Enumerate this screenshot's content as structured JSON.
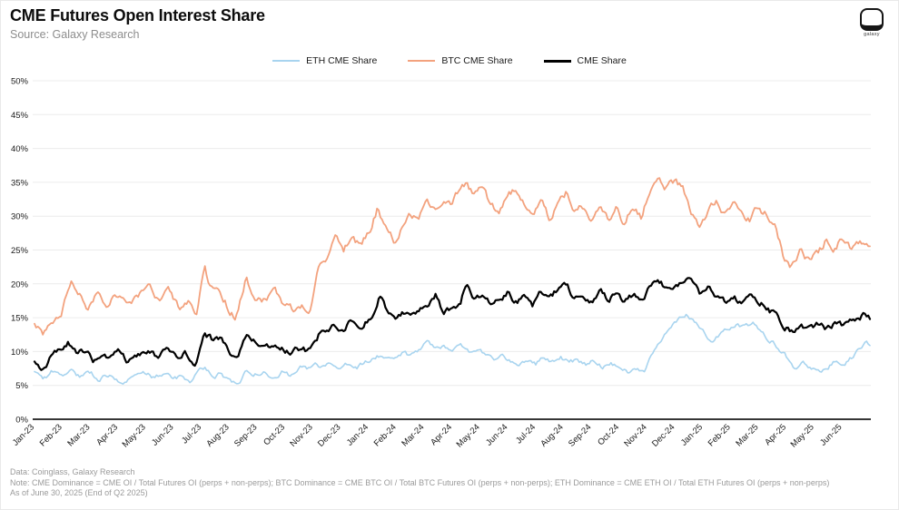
{
  "header": {
    "title": "CME Futures Open Interest Share",
    "subtitle": "Source: Galaxy Research",
    "logo_word": "galaxy"
  },
  "footer": {
    "line1": "Data: Coinglass, Galaxy Research",
    "line2": "Note: CME Dominance = CME OI / Total Futures OI (perps + non-perps); BTC Dominance = CME BTC OI / Total BTC Futures OI (perps + non-perps); ETH Dominance = CME ETH OI / Total ETH Futures OI (perps + non-perps)",
    "line3": "As of June 30, 2025 (End of Q2 2025)"
  },
  "chart_data": {
    "type": "line",
    "title": "CME Futures Open Interest Share",
    "x_unit": "months since Jan-2023",
    "xlim": [
      0,
      30
    ],
    "ylim": [
      0,
      50
    ],
    "grid": "horizontal",
    "y_tick_format": "percent",
    "y_ticks": [
      0,
      5,
      10,
      15,
      20,
      25,
      30,
      35,
      40,
      45,
      50
    ],
    "x_tick_labels": [
      "Jan-23",
      "Feb-23",
      "Mar-23",
      "Apr-23",
      "May-23",
      "Jun-23",
      "Jul-23",
      "Aug-23",
      "Sep-23",
      "Oct-23",
      "Nov-23",
      "Dec-23",
      "Jan-24",
      "Feb-24",
      "Mar-24",
      "Apr-24",
      "May-24",
      "Jun-24",
      "Jul-24",
      "Aug-24",
      "Sep-24",
      "Oct-24",
      "Nov-24",
      "Dec-24",
      "Jan-25",
      "Feb-25",
      "Mar-25",
      "Apr-25",
      "May-25",
      "Jun-25"
    ],
    "legend_position": "top",
    "colors": {
      "eth": "#A8D4EF",
      "btc": "#F3A27E",
      "cme": "#000000",
      "grid": "#ececec",
      "axis": "#1a1a1a"
    },
    "series": [
      {
        "name": "ETH CME Share",
        "color": "#A8D4EF",
        "width": 1.6,
        "jitter": 0.3,
        "points": [
          [
            0,
            7.0
          ],
          [
            0.3,
            5.8
          ],
          [
            0.6,
            6.9
          ],
          [
            1.0,
            6.6
          ],
          [
            1.3,
            7.3
          ],
          [
            1.6,
            6.4
          ],
          [
            2.0,
            7.0
          ],
          [
            2.3,
            6.0
          ],
          [
            2.6,
            6.6
          ],
          [
            3.0,
            5.9
          ],
          [
            3.3,
            5.4
          ],
          [
            3.6,
            6.3
          ],
          [
            4.0,
            6.8
          ],
          [
            4.3,
            6.1
          ],
          [
            4.6,
            6.7
          ],
          [
            5.0,
            5.9
          ],
          [
            5.3,
            6.4
          ],
          [
            5.6,
            5.8
          ],
          [
            6.1,
            7.6
          ],
          [
            6.4,
            6.1
          ],
          [
            6.7,
            6.8
          ],
          [
            7.0,
            5.6
          ],
          [
            7.3,
            4.8
          ],
          [
            7.6,
            7.3
          ],
          [
            7.9,
            6.6
          ],
          [
            8.2,
            7.1
          ],
          [
            8.5,
            6.4
          ],
          [
            8.9,
            7.0
          ],
          [
            9.2,
            6.5
          ],
          [
            9.5,
            7.9
          ],
          [
            9.8,
            7.3
          ],
          [
            10.1,
            8.2
          ],
          [
            10.4,
            7.5
          ],
          [
            10.7,
            8.3
          ],
          [
            11.0,
            7.7
          ],
          [
            11.3,
            8.5
          ],
          [
            11.6,
            7.8
          ],
          [
            12.0,
            8.6
          ],
          [
            12.3,
            9.3
          ],
          [
            12.6,
            8.6
          ],
          [
            12.9,
            9.0
          ],
          [
            13.2,
            9.8
          ],
          [
            13.5,
            9.3
          ],
          [
            13.8,
            10.4
          ],
          [
            14.1,
            11.4
          ],
          [
            14.4,
            10.6
          ],
          [
            14.7,
            11.0
          ],
          [
            15.0,
            10.2
          ],
          [
            15.3,
            10.8
          ],
          [
            15.6,
            10.0
          ],
          [
            15.9,
            10.5
          ],
          [
            16.2,
            9.6
          ],
          [
            16.5,
            9.0
          ],
          [
            16.8,
            9.5
          ],
          [
            17.1,
            8.6
          ],
          [
            17.4,
            8.0
          ],
          [
            17.7,
            8.8
          ],
          [
            18.0,
            8.2
          ],
          [
            18.3,
            9.3
          ],
          [
            18.6,
            8.5
          ],
          [
            18.9,
            9.1
          ],
          [
            19.2,
            8.3
          ],
          [
            19.5,
            8.9
          ],
          [
            19.8,
            8.1
          ],
          [
            20.1,
            8.7
          ],
          [
            20.4,
            7.8
          ],
          [
            20.7,
            8.4
          ],
          [
            21.0,
            7.6
          ],
          [
            21.3,
            7.1
          ],
          [
            21.6,
            7.7
          ],
          [
            21.9,
            7.2
          ],
          [
            22.2,
            9.6
          ],
          [
            22.5,
            11.8
          ],
          [
            22.8,
            13.4
          ],
          [
            23.1,
            14.6
          ],
          [
            23.4,
            15.5
          ],
          [
            23.7,
            14.2
          ],
          [
            24.0,
            13.0
          ],
          [
            24.3,
            11.2
          ],
          [
            24.6,
            12.6
          ],
          [
            24.9,
            13.3
          ],
          [
            25.2,
            14.2
          ],
          [
            25.5,
            13.6
          ],
          [
            25.8,
            14.4
          ],
          [
            26.1,
            12.8
          ],
          [
            26.4,
            11.6
          ],
          [
            26.7,
            10.7
          ],
          [
            27.0,
            9.2
          ],
          [
            27.3,
            7.6
          ],
          [
            27.6,
            8.3
          ],
          [
            27.9,
            7.4
          ],
          [
            28.2,
            6.9
          ],
          [
            28.5,
            7.8
          ],
          [
            28.8,
            8.6
          ],
          [
            29.1,
            8.2
          ],
          [
            29.4,
            9.3
          ],
          [
            29.7,
            10.6
          ],
          [
            29.85,
            11.3
          ],
          [
            30,
            10.8
          ]
        ]
      },
      {
        "name": "BTC CME Share",
        "color": "#F3A27E",
        "width": 1.8,
        "jitter": 0.5,
        "points": [
          [
            0,
            14.5
          ],
          [
            0.3,
            12.9
          ],
          [
            0.7,
            15.0
          ],
          [
            1.0,
            16.2
          ],
          [
            1.3,
            20.8
          ],
          [
            1.6,
            18.4
          ],
          [
            1.9,
            16.6
          ],
          [
            2.3,
            19.3
          ],
          [
            2.6,
            17.2
          ],
          [
            3.0,
            18.8
          ],
          [
            3.3,
            17.4
          ],
          [
            3.7,
            18.2
          ],
          [
            4.1,
            19.5
          ],
          [
            4.5,
            17.6
          ],
          [
            4.9,
            18.9
          ],
          [
            5.2,
            15.9
          ],
          [
            5.5,
            17.3
          ],
          [
            5.8,
            15.6
          ],
          [
            6.1,
            22.3
          ],
          [
            6.3,
            20.0
          ],
          [
            6.6,
            19.6
          ],
          [
            7.0,
            16.2
          ],
          [
            7.2,
            14.9
          ],
          [
            7.6,
            20.8
          ],
          [
            7.9,
            18.2
          ],
          [
            8.2,
            17.6
          ],
          [
            8.6,
            18.9
          ],
          [
            9.0,
            16.8
          ],
          [
            9.3,
            16.2
          ],
          [
            9.6,
            17.0
          ],
          [
            9.9,
            16.4
          ],
          [
            10.2,
            22.4
          ],
          [
            10.5,
            24.0
          ],
          [
            10.8,
            26.3
          ],
          [
            11.1,
            25.2
          ],
          [
            11.4,
            26.6
          ],
          [
            11.7,
            25.6
          ],
          [
            12.0,
            27.5
          ],
          [
            12.3,
            30.8
          ],
          [
            12.6,
            28.5
          ],
          [
            12.9,
            26.5
          ],
          [
            13.2,
            28.1
          ],
          [
            13.5,
            30.2
          ],
          [
            13.8,
            29.4
          ],
          [
            14.1,
            31.8
          ],
          [
            14.4,
            30.6
          ],
          [
            14.7,
            33.0
          ],
          [
            15.0,
            32.2
          ],
          [
            15.3,
            34.1
          ],
          [
            15.5,
            35.2
          ],
          [
            15.8,
            33.0
          ],
          [
            16.1,
            34.2
          ],
          [
            16.4,
            31.6
          ],
          [
            16.7,
            30.6
          ],
          [
            17.0,
            33.2
          ],
          [
            17.3,
            34.4
          ],
          [
            17.6,
            31.5
          ],
          [
            17.9,
            29.8
          ],
          [
            18.2,
            31.9
          ],
          [
            18.5,
            29.3
          ],
          [
            18.8,
            32.3
          ],
          [
            19.1,
            33.5
          ],
          [
            19.4,
            30.4
          ],
          [
            19.7,
            31.5
          ],
          [
            20.0,
            29.5
          ],
          [
            20.3,
            31.2
          ],
          [
            20.6,
            29.0
          ],
          [
            20.9,
            30.9
          ],
          [
            21.2,
            28.6
          ],
          [
            21.5,
            31.7
          ],
          [
            21.8,
            29.4
          ],
          [
            22.1,
            33.8
          ],
          [
            22.4,
            35.3
          ],
          [
            22.7,
            34.2
          ],
          [
            23.0,
            35.0
          ],
          [
            23.3,
            33.9
          ],
          [
            23.6,
            30.0
          ],
          [
            23.9,
            28.2
          ],
          [
            24.2,
            31.0
          ],
          [
            24.5,
            32.6
          ],
          [
            24.8,
            30.4
          ],
          [
            25.1,
            31.6
          ],
          [
            25.4,
            30.0
          ],
          [
            25.7,
            29.3
          ],
          [
            26.0,
            31.3
          ],
          [
            26.3,
            30.2
          ],
          [
            26.6,
            28.6
          ],
          [
            26.9,
            23.8
          ],
          [
            27.2,
            22.5
          ],
          [
            27.5,
            25.2
          ],
          [
            27.8,
            23.3
          ],
          [
            28.1,
            24.5
          ],
          [
            28.4,
            26.3
          ],
          [
            28.7,
            25.0
          ],
          [
            29.0,
            26.7
          ],
          [
            29.3,
            25.3
          ],
          [
            29.6,
            25.6
          ],
          [
            30,
            26.1
          ]
        ]
      },
      {
        "name": "CME Share",
        "color": "#000000",
        "width": 2.2,
        "jitter": 0.4,
        "points": [
          [
            0,
            8.4
          ],
          [
            0.3,
            7.1
          ],
          [
            0.7,
            9.8
          ],
          [
            1.0,
            10.2
          ],
          [
            1.2,
            11.2
          ],
          [
            1.5,
            9.6
          ],
          [
            1.8,
            10.3
          ],
          [
            2.1,
            8.8
          ],
          [
            2.4,
            9.7
          ],
          [
            2.7,
            9.2
          ],
          [
            3.0,
            10.4
          ],
          [
            3.3,
            8.7
          ],
          [
            3.6,
            9.4
          ],
          [
            4.0,
            10.0
          ],
          [
            4.4,
            9.1
          ],
          [
            4.8,
            10.1
          ],
          [
            5.1,
            8.9
          ],
          [
            5.4,
            9.6
          ],
          [
            5.8,
            8.1
          ],
          [
            6.1,
            12.6
          ],
          [
            6.4,
            11.7
          ],
          [
            6.7,
            12.2
          ],
          [
            7.0,
            10.0
          ],
          [
            7.3,
            8.9
          ],
          [
            7.6,
            12.0
          ],
          [
            7.9,
            11.2
          ],
          [
            8.2,
            11.4
          ],
          [
            8.5,
            10.3
          ],
          [
            8.9,
            10.6
          ],
          [
            9.2,
            9.9
          ],
          [
            9.6,
            10.3
          ],
          [
            9.9,
            10.1
          ],
          [
            10.2,
            12.4
          ],
          [
            10.5,
            13.2
          ],
          [
            10.8,
            14.0
          ],
          [
            11.1,
            13.4
          ],
          [
            11.4,
            14.4
          ],
          [
            11.7,
            13.7
          ],
          [
            12.0,
            14.6
          ],
          [
            12.2,
            15.3
          ],
          [
            12.4,
            18.3
          ],
          [
            12.7,
            16.0
          ],
          [
            12.9,
            14.8
          ],
          [
            13.2,
            15.6
          ],
          [
            13.5,
            15.2
          ],
          [
            13.8,
            16.3
          ],
          [
            14.1,
            17.0
          ],
          [
            14.4,
            18.6
          ],
          [
            14.7,
            15.8
          ],
          [
            15.0,
            16.5
          ],
          [
            15.3,
            17.4
          ],
          [
            15.5,
            19.9
          ],
          [
            15.8,
            17.6
          ],
          [
            16.1,
            18.4
          ],
          [
            16.4,
            17.2
          ],
          [
            16.7,
            17.8
          ],
          [
            17.0,
            18.9
          ],
          [
            17.3,
            17.3
          ],
          [
            17.6,
            18.1
          ],
          [
            17.9,
            16.9
          ],
          [
            18.2,
            18.8
          ],
          [
            18.5,
            17.5
          ],
          [
            18.8,
            19.3
          ],
          [
            19.1,
            19.9
          ],
          [
            19.4,
            17.9
          ],
          [
            19.7,
            18.6
          ],
          [
            20.0,
            17.6
          ],
          [
            20.3,
            19.2
          ],
          [
            20.6,
            17.7
          ],
          [
            20.9,
            18.8
          ],
          [
            21.2,
            17.2
          ],
          [
            21.5,
            18.4
          ],
          [
            21.8,
            17.1
          ],
          [
            22.1,
            19.5
          ],
          [
            22.4,
            20.3
          ],
          [
            22.7,
            19.4
          ],
          [
            23.0,
            19.9
          ],
          [
            23.3,
            20.4
          ],
          [
            23.6,
            21.0
          ],
          [
            23.9,
            18.5
          ],
          [
            24.2,
            19.4
          ],
          [
            24.5,
            18.2
          ],
          [
            24.8,
            17.6
          ],
          [
            25.1,
            18.3
          ],
          [
            25.4,
            17.2
          ],
          [
            25.7,
            17.8
          ],
          [
            26.0,
            17.3
          ],
          [
            26.3,
            16.5
          ],
          [
            26.6,
            15.4
          ],
          [
            26.9,
            13.6
          ],
          [
            27.2,
            13.2
          ],
          [
            27.5,
            14.0
          ],
          [
            27.8,
            13.3
          ],
          [
            28.1,
            13.9
          ],
          [
            28.4,
            13.5
          ],
          [
            28.7,
            14.2
          ],
          [
            29.0,
            13.8
          ],
          [
            29.3,
            14.5
          ],
          [
            29.6,
            14.9
          ],
          [
            29.85,
            15.5
          ],
          [
            30,
            15.1
          ]
        ]
      }
    ]
  }
}
